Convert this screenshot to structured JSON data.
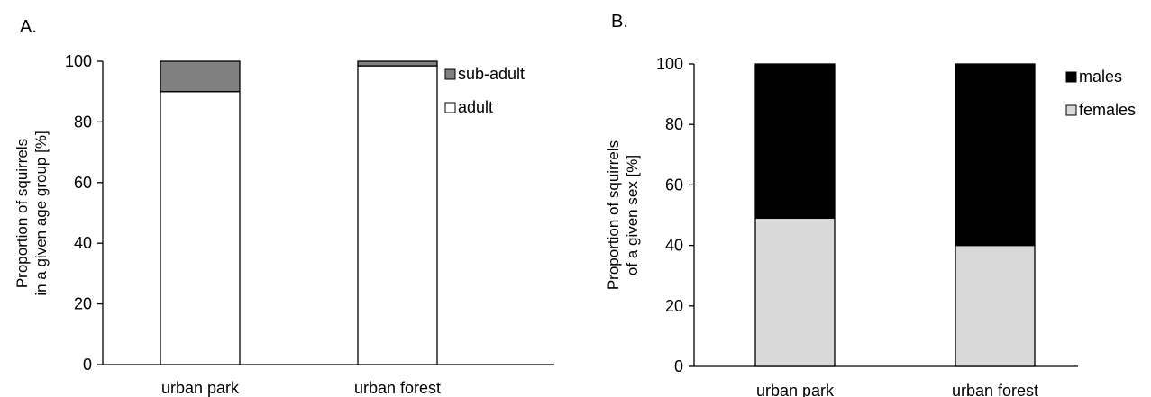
{
  "chart_data": [
    {
      "type": "bar",
      "stacked": true,
      "panel_label": "A.",
      "ylabel": "Proportion of squirrels in a given age group [%]",
      "ylabel_lines": [
        "Proportion of squirrels",
        "in a given age group [%]"
      ],
      "ylim": [
        0,
        100
      ],
      "yticks": [
        0,
        20,
        40,
        60,
        80,
        100
      ],
      "categories": [
        "urban park",
        "urban forest"
      ],
      "series": [
        {
          "name": "adult",
          "values": [
            90,
            98.5
          ],
          "color": "#ffffff"
        },
        {
          "name": "sub-adult",
          "values": [
            10,
            1.5
          ],
          "color": "#808080"
        }
      ],
      "legend": [
        "sub-adult",
        "adult"
      ],
      "legend_position": "right",
      "grid": false
    },
    {
      "type": "bar",
      "stacked": true,
      "panel_label": "B.",
      "ylabel": "Proportion of squirrels of a given sex [%]",
      "ylabel_lines": [
        "Proportion of squirrels",
        "of a given sex [%]"
      ],
      "ylim": [
        0,
        100
      ],
      "yticks": [
        0,
        20,
        40,
        60,
        80,
        100
      ],
      "categories": [
        "urban park",
        "urban forest"
      ],
      "series": [
        {
          "name": "females",
          "values": [
            49,
            40
          ],
          "color": "#d9d9d9"
        },
        {
          "name": "males",
          "values": [
            51,
            60
          ],
          "color": "#000000"
        }
      ],
      "legend": [
        "males",
        "females"
      ],
      "legend_position": "right",
      "grid": false
    }
  ]
}
